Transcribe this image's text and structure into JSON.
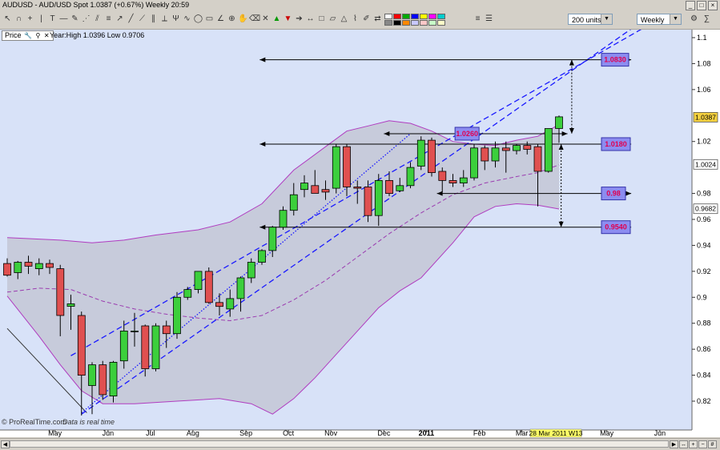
{
  "window": {
    "title": "AUDUSD - AUD/USD Spot    1.0387 (+0.67%)      Weekly  20:59"
  },
  "toolbar": {
    "units_value": "200 units",
    "period_value": "Weekly",
    "palette": [
      "#ffffff",
      "#ff0000",
      "#00aa00",
      "#0000ff",
      "#ffff00",
      "#ff00ff",
      "#00cccc",
      "#888888",
      "#000000",
      "#ff8800",
      "#c8c8ff",
      "#ffc8c8",
      "#c8ffc8",
      "#ffffc8"
    ]
  },
  "price_panel": {
    "label": "Price",
    "info": "Year:High 1.0396 Low 0.9706"
  },
  "watermark": {
    "brand": "© ProRealTime.com",
    "note": "Data is real time"
  },
  "chart_data": {
    "type": "candlestick",
    "instrument": "AUDUSD",
    "timeframe": "Weekly",
    "ylim": [
      0.8,
      1.11
    ],
    "y_ticks": [
      {
        "v": 1.1,
        "label": "1.1"
      },
      {
        "v": 1.08,
        "label": "1.08"
      },
      {
        "v": 1.06,
        "label": "1.06"
      },
      {
        "v": 1.02,
        "label": "1.02"
      },
      {
        "v": 0.98,
        "label": "0.98"
      },
      {
        "v": 0.96,
        "label": "0.96"
      },
      {
        "v": 0.94,
        "label": "0.94"
      },
      {
        "v": 0.92,
        "label": "0.92"
      },
      {
        "v": 0.9,
        "label": "0.9"
      },
      {
        "v": 0.88,
        "label": "0.88"
      },
      {
        "v": 0.86,
        "label": "0.86"
      },
      {
        "v": 0.84,
        "label": "0.84"
      },
      {
        "v": 0.82,
        "label": "0.82"
      }
    ],
    "axis_markers": [
      {
        "v": 1.0387,
        "label": "1.0387",
        "color": "#f4d03f"
      },
      {
        "v": 1.0024,
        "label": "1.0024",
        "color": "#ffffff"
      },
      {
        "v": 0.9682,
        "label": "0.9682",
        "color": "#ffffff"
      }
    ],
    "month_labels": [
      {
        "idx": 4.5,
        "label": "May",
        "bold": false
      },
      {
        "idx": 9.5,
        "label": "Jun",
        "bold": false
      },
      {
        "idx": 13.5,
        "label": "Jul",
        "bold": false
      },
      {
        "idx": 17.5,
        "label": "Aug",
        "bold": false
      },
      {
        "idx": 22.5,
        "label": "Sep",
        "bold": false
      },
      {
        "idx": 26.5,
        "label": "Oct",
        "bold": false
      },
      {
        "idx": 30.5,
        "label": "Nov",
        "bold": false
      },
      {
        "idx": 35.5,
        "label": "Dec",
        "bold": false
      },
      {
        "idx": 39.5,
        "label": "2011",
        "bold": true
      },
      {
        "idx": 44.5,
        "label": "Feb",
        "bold": false
      },
      {
        "idx": 48.5,
        "label": "Mar",
        "bold": false
      },
      {
        "idx": 56.5,
        "label": "May",
        "bold": false
      },
      {
        "idx": 61.5,
        "label": "Jun",
        "bold": false
      }
    ],
    "date_cursor": "28 Mar 2011 W13",
    "candles": [
      {
        "o": 0.926,
        "h": 0.93,
        "l": 0.916,
        "c": 0.917
      },
      {
        "o": 0.919,
        "h": 0.928,
        "l": 0.914,
        "c": 0.927
      },
      {
        "o": 0.927,
        "h": 0.932,
        "l": 0.918,
        "c": 0.924
      },
      {
        "o": 0.922,
        "h": 0.93,
        "l": 0.917,
        "c": 0.926
      },
      {
        "o": 0.926,
        "h": 0.929,
        "l": 0.918,
        "c": 0.923
      },
      {
        "o": 0.922,
        "h": 0.925,
        "l": 0.87,
        "c": 0.886
      },
      {
        "o": 0.893,
        "h": 0.902,
        "l": 0.875,
        "c": 0.895
      },
      {
        "o": 0.886,
        "h": 0.889,
        "l": 0.809,
        "c": 0.84
      },
      {
        "o": 0.832,
        "h": 0.85,
        "l": 0.81,
        "c": 0.848
      },
      {
        "o": 0.848,
        "h": 0.851,
        "l": 0.821,
        "c": 0.825
      },
      {
        "o": 0.824,
        "h": 0.851,
        "l": 0.819,
        "c": 0.85
      },
      {
        "o": 0.851,
        "h": 0.882,
        "l": 0.845,
        "c": 0.874
      },
      {
        "o": 0.874,
        "h": 0.888,
        "l": 0.862,
        "c": 0.874
      },
      {
        "o": 0.878,
        "h": 0.879,
        "l": 0.839,
        "c": 0.845
      },
      {
        "o": 0.845,
        "h": 0.88,
        "l": 0.843,
        "c": 0.878
      },
      {
        "o": 0.878,
        "h": 0.882,
        "l": 0.861,
        "c": 0.872
      },
      {
        "o": 0.872,
        "h": 0.904,
        "l": 0.868,
        "c": 0.9
      },
      {
        "o": 0.9,
        "h": 0.908,
        "l": 0.898,
        "c": 0.906
      },
      {
        "o": 0.906,
        "h": 0.92,
        "l": 0.903,
        "c": 0.92
      },
      {
        "o": 0.92,
        "h": 0.923,
        "l": 0.895,
        "c": 0.896
      },
      {
        "o": 0.896,
        "h": 0.903,
        "l": 0.886,
        "c": 0.893
      },
      {
        "o": 0.891,
        "h": 0.906,
        "l": 0.885,
        "c": 0.899
      },
      {
        "o": 0.899,
        "h": 0.916,
        "l": 0.889,
        "c": 0.915
      },
      {
        "o": 0.915,
        "h": 0.93,
        "l": 0.911,
        "c": 0.927
      },
      {
        "o": 0.927,
        "h": 0.937,
        "l": 0.925,
        "c": 0.936
      },
      {
        "o": 0.936,
        "h": 0.955,
        "l": 0.931,
        "c": 0.954
      },
      {
        "o": 0.954,
        "h": 0.97,
        "l": 0.952,
        "c": 0.967
      },
      {
        "o": 0.967,
        "h": 0.988,
        "l": 0.963,
        "c": 0.979
      },
      {
        "o": 0.983,
        "h": 0.994,
        "l": 0.977,
        "c": 0.988
      },
      {
        "o": 0.986,
        "h": 0.998,
        "l": 0.981,
        "c": 0.98
      },
      {
        "o": 0.983,
        "h": 0.99,
        "l": 0.975,
        "c": 0.981
      },
      {
        "o": 0.984,
        "h": 1.018,
        "l": 0.98,
        "c": 1.016
      },
      {
        "o": 1.016,
        "h": 1.018,
        "l": 0.978,
        "c": 0.985
      },
      {
        "o": 0.985,
        "h": 0.99,
        "l": 0.972,
        "c": 0.984
      },
      {
        "o": 0.985,
        "h": 0.99,
        "l": 0.958,
        "c": 0.963
      },
      {
        "o": 0.963,
        "h": 0.995,
        "l": 0.955,
        "c": 0.99
      },
      {
        "o": 0.99,
        "h": 0.997,
        "l": 0.978,
        "c": 0.98
      },
      {
        "o": 0.982,
        "h": 0.992,
        "l": 0.981,
        "c": 0.986
      },
      {
        "o": 0.986,
        "h": 1.004,
        "l": 0.984,
        "c": 1.0
      },
      {
        "o": 1.001,
        "h": 1.024,
        "l": 0.998,
        "c": 1.021
      },
      {
        "o": 1.021,
        "h": 1.023,
        "l": 0.993,
        "c": 0.996
      },
      {
        "o": 0.997,
        "h": 1.0,
        "l": 0.981,
        "c": 0.99
      },
      {
        "o": 0.99,
        "h": 0.995,
        "l": 0.985,
        "c": 0.988
      },
      {
        "o": 0.988,
        "h": 0.998,
        "l": 0.985,
        "c": 0.992
      },
      {
        "o": 0.992,
        "h": 1.018,
        "l": 0.99,
        "c": 1.015
      },
      {
        "o": 1.015,
        "h": 1.017,
        "l": 0.998,
        "c": 1.005
      },
      {
        "o": 1.005,
        "h": 1.02,
        "l": 1.0,
        "c": 1.015
      },
      {
        "o": 1.015,
        "h": 1.02,
        "l": 0.996,
        "c": 1.013
      },
      {
        "o": 1.013,
        "h": 1.018,
        "l": 1.01,
        "c": 1.017
      },
      {
        "o": 1.017,
        "h": 1.02,
        "l": 1.01,
        "c": 1.014
      },
      {
        "o": 1.016,
        "h": 1.018,
        "l": 0.97,
        "c": 0.997
      },
      {
        "o": 0.997,
        "h": 1.03,
        "l": 0.996,
        "c": 1.03
      },
      {
        "o": 1.03,
        "h": 1.04,
        "l": 1.019,
        "c": 1.039
      }
    ],
    "bands": {
      "upper": [
        [
          0,
          0.946
        ],
        [
          5,
          0.944
        ],
        [
          8,
          0.942
        ],
        [
          11,
          0.944
        ],
        [
          14,
          0.948
        ],
        [
          18,
          0.952
        ],
        [
          21,
          0.958
        ],
        [
          24,
          0.972
        ],
        [
          27,
          0.998
        ],
        [
          30,
          1.016
        ],
        [
          32,
          1.028
        ],
        [
          34,
          1.032
        ],
        [
          36,
          1.036
        ],
        [
          38,
          1.034
        ],
        [
          40,
          1.028
        ],
        [
          42,
          1.02
        ],
        [
          44,
          1.018
        ],
        [
          46,
          1.017
        ],
        [
          48,
          1.021
        ],
        [
          50,
          1.024
        ],
        [
          52,
          1.033
        ]
      ],
      "lower": [
        [
          0,
          0.901
        ],
        [
          3,
          0.87
        ],
        [
          5,
          0.848
        ],
        [
          7,
          0.828
        ],
        [
          9,
          0.818
        ],
        [
          12,
          0.818
        ],
        [
          16,
          0.82
        ],
        [
          20,
          0.822
        ],
        [
          23,
          0.818
        ],
        [
          25,
          0.81
        ],
        [
          27,
          0.822
        ],
        [
          29,
          0.838
        ],
        [
          31,
          0.856
        ],
        [
          33,
          0.874
        ],
        [
          35,
          0.892
        ],
        [
          37,
          0.905
        ],
        [
          39,
          0.915
        ],
        [
          42,
          0.942
        ],
        [
          44,
          0.962
        ],
        [
          46,
          0.97
        ],
        [
          48,
          0.972
        ],
        [
          50,
          0.971
        ],
        [
          52,
          0.968
        ]
      ],
      "middle": [
        [
          0,
          0.904
        ],
        [
          3,
          0.907
        ],
        [
          6,
          0.906
        ],
        [
          9,
          0.897
        ],
        [
          12,
          0.891
        ],
        [
          15,
          0.887
        ],
        [
          18,
          0.884
        ],
        [
          21,
          0.882
        ],
        [
          24,
          0.886
        ],
        [
          27,
          0.898
        ],
        [
          30,
          0.913
        ],
        [
          33,
          0.931
        ],
        [
          36,
          0.949
        ],
        [
          39,
          0.965
        ],
        [
          42,
          0.979
        ],
        [
          45,
          0.988
        ],
        [
          48,
          0.993
        ],
        [
          50,
          0.996
        ],
        [
          52,
          1.002
        ]
      ]
    },
    "channel_lines": [
      {
        "from": [
          6,
          0.855
        ],
        "to": [
          62,
          1.117
        ],
        "color": "#1a1aff",
        "dash": "7,4"
      },
      {
        "from": [
          7,
          0.81
        ],
        "to": [
          62,
          1.125
        ],
        "color": "#1a1aff",
        "dash": "7,4"
      },
      {
        "from": [
          7,
          0.811
        ],
        "to": [
          38,
          1.026
        ],
        "color": "#1a1aff",
        "dash": "1.5,2"
      }
    ],
    "level_lines": [
      {
        "v": 1.083,
        "from": 23.8,
        "to": 58.8
      },
      {
        "v": 1.026,
        "from": 35.5,
        "to": 52.8
      },
      {
        "v": 1.018,
        "from": 23.8,
        "to": 58.8
      },
      {
        "v": 0.98,
        "from": 40.5,
        "to": 58.8
      },
      {
        "v": 0.954,
        "from": 23.8,
        "to": 58.8
      }
    ],
    "vertical_arrows": [
      {
        "x": 53.2,
        "v1": 1.083,
        "v2": 1.026
      },
      {
        "x": 52.2,
        "v1": 1.018,
        "v2": 0.954
      }
    ],
    "price_labels": [
      {
        "v": 1.083,
        "text": "1.0830",
        "x": 56.0,
        "w": 34
      },
      {
        "v": 1.026,
        "text": "1.0260",
        "x": 42.2,
        "w": 30
      },
      {
        "v": 1.018,
        "text": "1.0180",
        "x": 56.0,
        "w": 36
      },
      {
        "v": 0.98,
        "text": "0.98",
        "x": 56.0,
        "w": 30
      },
      {
        "v": 0.954,
        "text": "0.9540",
        "x": 56.0,
        "w": 36
      }
    ],
    "trend_line": {
      "from": [
        0,
        0.876
      ],
      "to": [
        7.5,
        0.811
      ]
    }
  }
}
